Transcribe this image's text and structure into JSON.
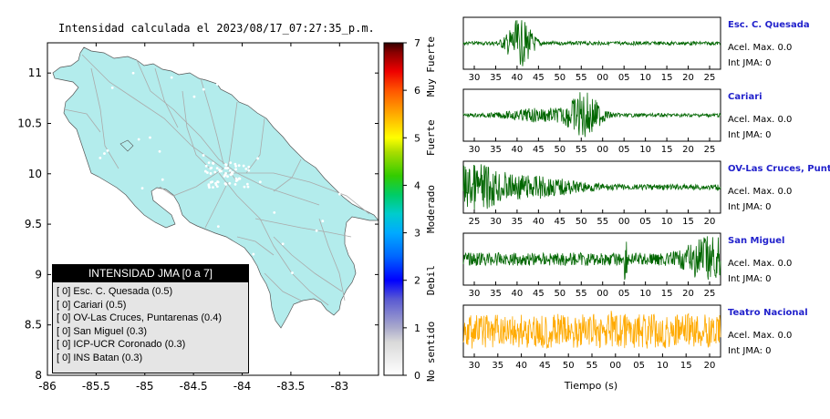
{
  "title": "Intensidad calculada el 2023/08/17_07:27:35_p.m.",
  "colors": {
    "land": "#b3ecec",
    "roads": "#aaaaaa",
    "dots": "#ffffff",
    "trace_green": "#006600",
    "trace_orange": "#ffaa00",
    "station_name": "#2222cc"
  },
  "chart_data": [
    {
      "type": "map",
      "xlim": [
        -86,
        -82.6
      ],
      "ylim": [
        8,
        11.3
      ],
      "x_ticks": [
        "-86",
        "-85.5",
        "-85",
        "-84.5",
        "-84",
        "-83.5",
        "-83"
      ],
      "y_ticks": [
        "8",
        "8.5",
        "9",
        "9.5",
        "10",
        "10.5",
        "11"
      ],
      "x_tick_values": [
        -86,
        -85.5,
        -85,
        -84.5,
        -84,
        -83.5,
        -83
      ],
      "y_tick_values": [
        8,
        8.5,
        9,
        9.5,
        10,
        10.5,
        11
      ],
      "legend": {
        "title": "INTENSIDAD JMA [0 a 7]",
        "entries": [
          {
            "intensity": "[ 0]",
            "label": "Esc. C. Quesada (0.5)"
          },
          {
            "intensity": "[ 0]",
            "label": "Cariari (0.5)"
          },
          {
            "intensity": "[ 0]",
            "label": "OV-Las Cruces, Puntarenas (0.4)"
          },
          {
            "intensity": "[ 0]",
            "label": "San Miguel (0.3)"
          },
          {
            "intensity": "[ 0]",
            "label": "ICP-UCR Coronado (0.3)"
          },
          {
            "intensity": "[ 0]",
            "label": "INS Batan (0.3)"
          }
        ]
      }
    },
    {
      "type": "heatmap",
      "name": "colorbar",
      "range": [
        0,
        7
      ],
      "ticks": [
        "0",
        "1",
        "2",
        "3",
        "4",
        "5",
        "6",
        "7"
      ],
      "category_labels": [
        "No sentido",
        "Debil",
        "Moderado",
        "Fuerte",
        "Muy Fuerte"
      ],
      "color_stops": [
        {
          "v": 0,
          "c": "#ffffff"
        },
        {
          "v": 0.7,
          "c": "#d9d9d9"
        },
        {
          "v": 1.0,
          "c": "#aaaacc"
        },
        {
          "v": 1.6,
          "c": "#5a5ad2"
        },
        {
          "v": 2.0,
          "c": "#0000ff"
        },
        {
          "v": 2.5,
          "c": "#0066ff"
        },
        {
          "v": 3.0,
          "c": "#00aaff"
        },
        {
          "v": 3.4,
          "c": "#00cccc"
        },
        {
          "v": 3.8,
          "c": "#00cc66"
        },
        {
          "v": 4.2,
          "c": "#33cc00"
        },
        {
          "v": 4.7,
          "c": "#aadd00"
        },
        {
          "v": 5.0,
          "c": "#ffff00"
        },
        {
          "v": 5.5,
          "c": "#ffaa00"
        },
        {
          "v": 6.0,
          "c": "#ff5500"
        },
        {
          "v": 6.4,
          "c": "#ee0000"
        },
        {
          "v": 6.8,
          "c": "#880000"
        },
        {
          "v": 7.0,
          "c": "#330000"
        }
      ]
    },
    {
      "type": "line",
      "name": "waveforms",
      "xlabel": "Tiempo (s)",
      "panels": [
        {
          "station": "Esc. C. Quesada",
          "acel": "Acel. Max. 0.0",
          "int": "Int JMA: 0",
          "ticks": [
            "30",
            "35",
            "40",
            "45",
            "50",
            "55",
            "00",
            "05",
            "10",
            "15",
            "20",
            "25"
          ],
          "color": "green",
          "bursts": [
            {
              "at": 0.22,
              "w": 0.08,
              "a": 1.0
            }
          ],
          "base": 0.08
        },
        {
          "station": "Cariari",
          "acel": "Acel. Max. 0.0",
          "int": "Int JMA: 0",
          "ticks": [
            "30",
            "35",
            "40",
            "45",
            "50",
            "55",
            "00",
            "05",
            "10",
            "15",
            "20",
            "25"
          ],
          "color": "green",
          "bursts": [
            {
              "at": 0.47,
              "w": 0.1,
              "a": 0.95
            },
            {
              "at": 0.3,
              "w": 0.2,
              "a": 0.25
            }
          ],
          "base": 0.08
        },
        {
          "station": "OV-Las Cruces, Puntar",
          "acel": "Acel. Max. 0.0",
          "int": "Int JMA: 0",
          "ticks": [
            "25",
            "30",
            "35",
            "40",
            "45",
            "50",
            "55",
            "00",
            "05",
            "10",
            "15",
            "20"
          ],
          "color": "green",
          "bursts": [
            {
              "at": 0.02,
              "w": 0.18,
              "a": 1.0
            },
            {
              "at": 0.25,
              "w": 0.3,
              "a": 0.4
            }
          ],
          "base": 0.12
        },
        {
          "station": "San Miguel",
          "acel": "Acel. Max. 0.0",
          "int": "Int JMA: 0",
          "ticks": [
            "30",
            "35",
            "40",
            "45",
            "50",
            "55",
            "00",
            "05",
            "10",
            "15",
            "20",
            "25"
          ],
          "color": "green",
          "bursts": [
            {
              "at": 0.63,
              "w": 0.01,
              "a": 1.0
            },
            {
              "at": 0.95,
              "w": 0.12,
              "a": 0.9
            }
          ],
          "base": 0.28
        },
        {
          "station": "Teatro Nacional",
          "acel": "Acel. Max. 0.0",
          "int": "Int JMA: 0",
          "ticks": [
            "30",
            "35",
            "40",
            "45",
            "50",
            "55",
            "00",
            "05",
            "10",
            "15",
            "20"
          ],
          "color": "orange",
          "bursts": [
            {
              "at": 0.58,
              "w": 0.01,
              "a": 1.0
            }
          ],
          "base": 0.75
        }
      ]
    }
  ]
}
